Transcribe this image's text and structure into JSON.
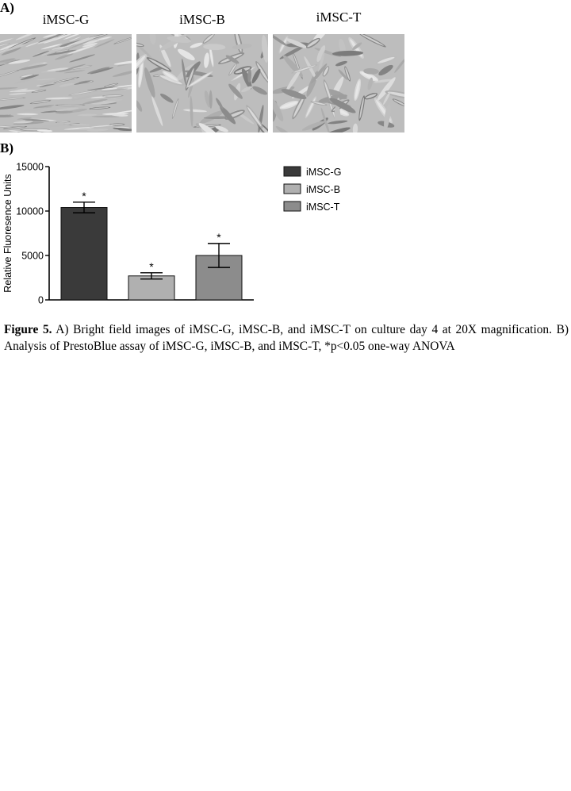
{
  "figure": {
    "panel_a_label": "A)",
    "panel_b_label": "B)",
    "image_titles": [
      "iMSC-G",
      "iMSC-B",
      "iMSC-T"
    ],
    "micrograph_description_icons": [
      "brightfield-aligned-cells",
      "brightfield-spread-cells",
      "brightfield-spread-cells"
    ],
    "caption_label": "Figure 5.",
    "caption_text": " A) Bright field images of iMSC-G, iMSC-B, and iMSC-T on culture day 4 at 20X magnification. B) Analysis of PrestoBlue assay of iMSC-G, iMSC-B, and iMSC-T, *p<0.05 one-way ANOVA"
  },
  "chart_data": {
    "type": "bar",
    "categories": [
      "iMSC-G",
      "iMSC-B",
      "iMSC-T"
    ],
    "values": [
      10400,
      2700,
      5000
    ],
    "errors": [
      600,
      350,
      1350
    ],
    "significance": [
      "*",
      "*",
      "*"
    ],
    "ylabel": "Relative Fluoresence Units",
    "ylim": [
      0,
      15000
    ],
    "yticks": [
      "0",
      "5000",
      "10000",
      "15000"
    ],
    "legend": [
      "iMSC-G",
      "iMSC-B",
      "iMSC-T"
    ],
    "legend_position": "right",
    "colors": [
      "#3a3a3a",
      "#b0b0b0",
      "#8c8c8c"
    ],
    "grid": false
  }
}
